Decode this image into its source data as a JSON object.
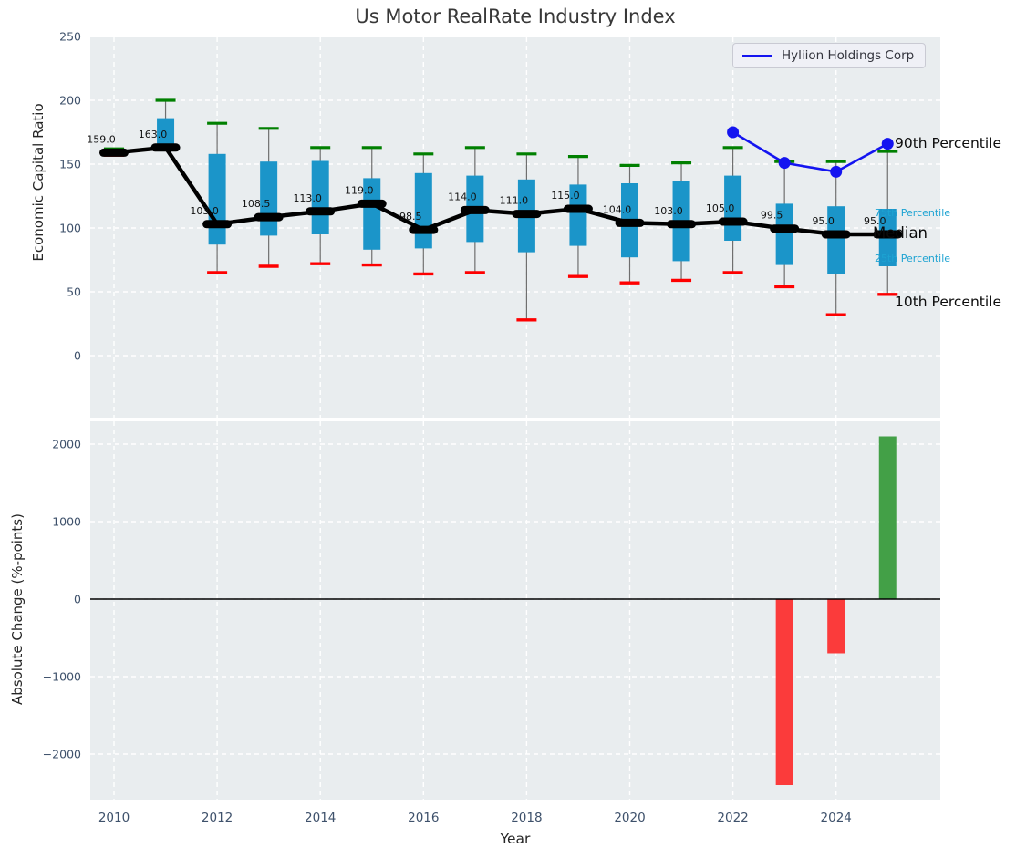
{
  "title": "Us Motor RealRate Industry Index",
  "colors": {
    "box": "#1b95c9",
    "whisker": "#6f6f6f",
    "cap_high": "#008000",
    "cap_low": "#fe0000",
    "median": "#000000",
    "company_line": "#1414f0",
    "bar_positive": "#43a047",
    "bar_negative": "#fb3b3b",
    "annotation_cyan": "#1da3d2",
    "annotation_black": "#0c0c0c",
    "tick_label": "#3e516b",
    "grid": "#ffffff",
    "axes_background": "#e9edef",
    "zero_line": "#000000"
  },
  "chart_data": [
    {
      "type": "boxplot",
      "title": "Us Motor RealRate Industry Index",
      "ylabel": "Economic Capital Ratio",
      "ylim": [
        -48.6,
        250
      ],
      "yticks": [
        0,
        50,
        100,
        150,
        200,
        250
      ],
      "xticks": [
        2010,
        2012,
        2014,
        2016,
        2018,
        2020,
        2022,
        2024
      ],
      "grid": true,
      "legend_position": "upper right",
      "legend_label": "Hyliion Holdings Corp",
      "x": [
        2010,
        2011,
        2012,
        2013,
        2014,
        2015,
        2016,
        2017,
        2018,
        2019,
        2020,
        2021,
        2022,
        2023,
        2024,
        2025
      ],
      "series": [
        {
          "name": "10th Percentile",
          "values": [
            157,
            162,
            65,
            70,
            72,
            71,
            64,
            65,
            28,
            62,
            57,
            59,
            65,
            54,
            32,
            48
          ]
        },
        {
          "name": "25th Percentile",
          "values": [
            158,
            164,
            87,
            94,
            95,
            83,
            84,
            89,
            81,
            86,
            77,
            74,
            90,
            71,
            64,
            70
          ]
        },
        {
          "name": "Median",
          "values": [
            159,
            163,
            103,
            108.5,
            113,
            119,
            98.5,
            114,
            111,
            115,
            104,
            103,
            105,
            99.5,
            95,
            95
          ]
        },
        {
          "name": "75th Percentile",
          "values": [
            160.5,
            186,
            158,
            152,
            152.5,
            139,
            143,
            141,
            138,
            134,
            135,
            137,
            141,
            119,
            117,
            115
          ]
        },
        {
          "name": "90th Percentile",
          "values": [
            162,
            200,
            182,
            178,
            163,
            163,
            158,
            163,
            158,
            156,
            149,
            151,
            163,
            152,
            152,
            160
          ]
        },
        {
          "name": "Hyliion Holdings Corp",
          "x": [
            2022,
            2023,
            2024,
            2025
          ],
          "values": [
            175,
            151,
            144,
            166
          ]
        }
      ],
      "median_labels": [
        "159.0",
        "163.0",
        "103.0",
        "108.5",
        "113.0",
        "119.0",
        "98.5",
        "114.0",
        "111.0",
        "115.0",
        "104.0",
        "103.0",
        "105.0",
        "99.5",
        "95.0",
        "95.0"
      ],
      "right_labels": [
        {
          "text": "90th Percentile",
          "color": "black"
        },
        {
          "text": "75th Percentile",
          "color": "cyan"
        },
        {
          "text": "Median",
          "color": "black"
        },
        {
          "text": "25th Percentile",
          "color": "cyan"
        },
        {
          "text": "10th Percentile",
          "color": "black"
        }
      ]
    },
    {
      "type": "bar",
      "ylabel": "Absolute Change (%-points)",
      "xlabel": "Year",
      "ylim": [
        -2590,
        2295
      ],
      "yticks": [
        -2000,
        -1000,
        0,
        1000,
        2000
      ],
      "xticks": [
        2010,
        2012,
        2014,
        2016,
        2018,
        2020,
        2022,
        2024
      ],
      "grid": true,
      "x": [
        2010,
        2011,
        2012,
        2013,
        2014,
        2015,
        2016,
        2017,
        2018,
        2019,
        2020,
        2021,
        2022,
        2023,
        2024,
        2025
      ],
      "values": [
        0,
        0,
        0,
        0,
        0,
        0,
        0,
        0,
        0,
        0,
        0,
        0,
        0,
        -2400,
        -700,
        2100
      ]
    }
  ]
}
